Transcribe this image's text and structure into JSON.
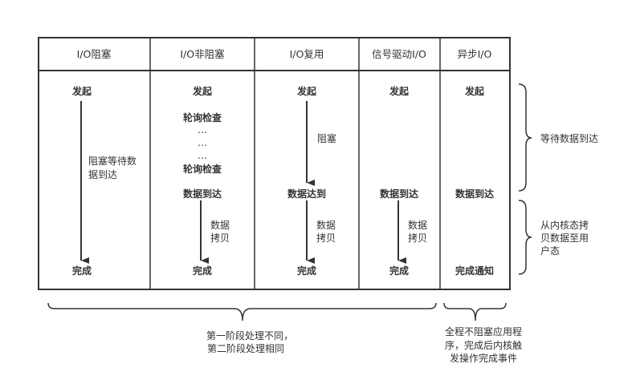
{
  "columns": [
    {
      "header": "I/O阻塞",
      "start": "发起",
      "end": "完成",
      "arrow_label": [
        "阻塞等待数",
        "据到达"
      ]
    },
    {
      "header": "I/O非阻塞",
      "start": "发起",
      "polls": [
        "轮询检查",
        "…",
        "…",
        "…",
        "轮询检查"
      ],
      "arrival": "数据到达",
      "copy_label": [
        "数据",
        "拷贝"
      ],
      "end": "完成"
    },
    {
      "header": "I/O复用",
      "start": "发起",
      "block_label": "阻塞",
      "arrival": "数据达到",
      "copy_label": [
        "数据",
        "拷贝"
      ],
      "end": "完成"
    },
    {
      "header": "信号驱动I/O",
      "start": "发起",
      "arrival": "数据到达",
      "copy_label": [
        "数据",
        "拷贝"
      ],
      "end": "完成"
    },
    {
      "header": "异步I/O",
      "start": "发起",
      "arrival": "数据到达",
      "end": "完成通知"
    }
  ],
  "phases": {
    "wait": "等待数据到达",
    "copy": [
      "从内核态拷",
      "贝数据至用",
      "户态"
    ]
  },
  "notes": {
    "first_four": [
      "第一阶段处理不同，",
      "第二阶段处理相同"
    ],
    "async": [
      "全程不阻塞应用程",
      "序，完成后内核触",
      "发操作完成事件"
    ]
  }
}
